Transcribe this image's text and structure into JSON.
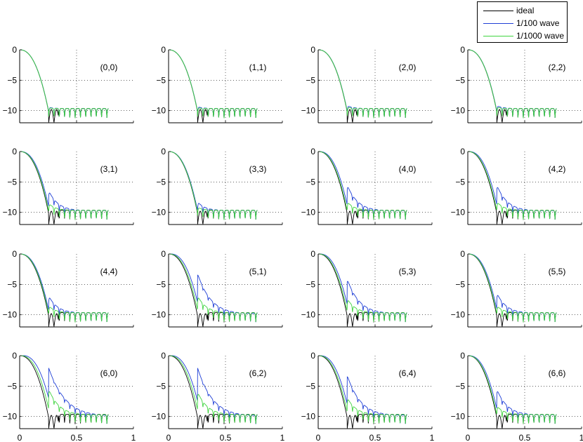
{
  "chart_data": {
    "type": "line",
    "layout_grid": "4x4",
    "xlim": [
      0,
      1
    ],
    "ylim": [
      -12,
      0
    ],
    "xticks": [
      0,
      0.5,
      1
    ],
    "yticks": [
      0,
      -5,
      -10
    ],
    "grid": "dotted",
    "legend": {
      "placement": "top-right",
      "entries": [
        {
          "label": "ideal",
          "color": "#000000"
        },
        {
          "label": "1/100 wave",
          "color": "#1f3fd6"
        },
        {
          "label": "1/1000 wave",
          "color": "#3fd43f"
        }
      ]
    },
    "panels": [
      {
        "label": "(0,0)",
        "dev100": 0.02,
        "dev1000": 0.01
      },
      {
        "label": "(1,1)",
        "dev100": 0.03,
        "dev1000": 0.01
      },
      {
        "label": "(2,0)",
        "dev100": 0.05,
        "dev1000": 0.02
      },
      {
        "label": "(2,2)",
        "dev100": 0.05,
        "dev1000": 0.02
      },
      {
        "label": "(3,1)",
        "dev100": 0.35,
        "dev1000": 0.12
      },
      {
        "label": "(3,3)",
        "dev100": 0.15,
        "dev1000": 0.05
      },
      {
        "label": "(4,0)",
        "dev100": 0.45,
        "dev1000": 0.15
      },
      {
        "label": "(4,2)",
        "dev100": 0.45,
        "dev1000": 0.15
      },
      {
        "label": "(4,4)",
        "dev100": 0.3,
        "dev1000": 0.12
      },
      {
        "label": "(5,1)",
        "dev100": 0.7,
        "dev1000": 0.3
      },
      {
        "label": "(5,3)",
        "dev100": 0.6,
        "dev1000": 0.25
      },
      {
        "label": "(5,5)",
        "dev100": 0.35,
        "dev1000": 0.12
      },
      {
        "label": "(6,0)",
        "dev100": 1.0,
        "dev1000": 0.45
      },
      {
        "label": "(6,2)",
        "dev100": 0.85,
        "dev1000": 0.4
      },
      {
        "label": "(6,4)",
        "dev100": 0.7,
        "dev1000": 0.3
      },
      {
        "label": "(6,6)",
        "dev100": 0.45,
        "dev1000": 0.15
      }
    ]
  }
}
